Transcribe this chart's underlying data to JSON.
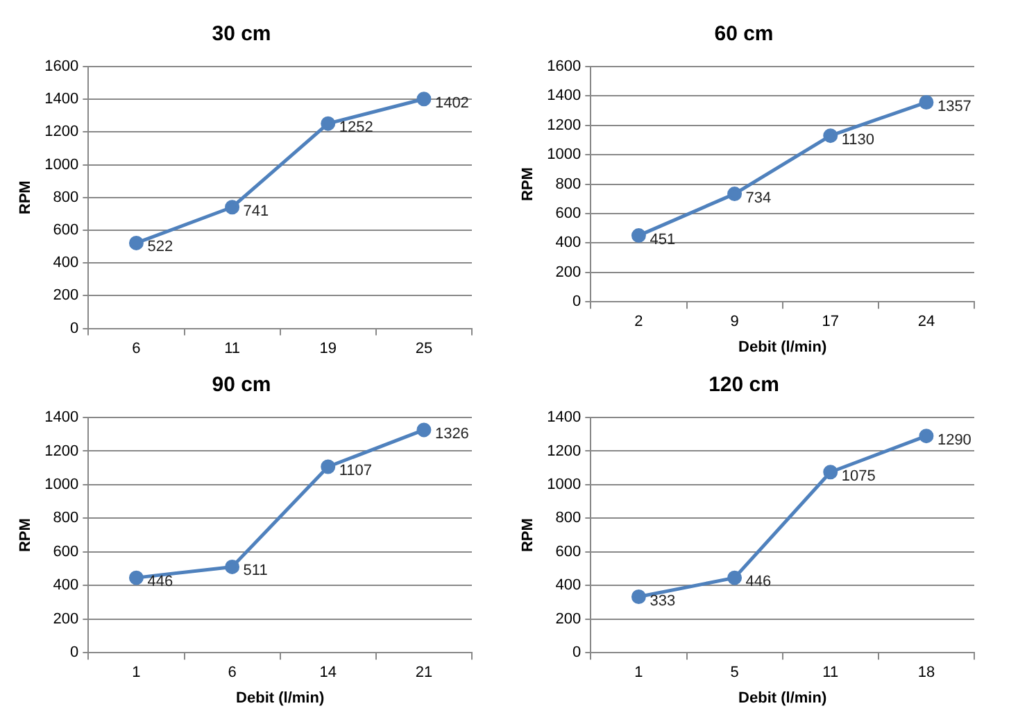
{
  "chart_data": [
    {
      "type": "line",
      "title": "30 cm",
      "ylabel": "RPM",
      "categories": [
        "6",
        "11",
        "19",
        "25"
      ],
      "values": [
        522,
        741,
        1252,
        1402
      ],
      "color": "#4f81bd",
      "ylim": [
        0,
        1600
      ],
      "yticks": [
        0,
        200,
        400,
        600,
        800,
        1000,
        1200,
        1400,
        1600
      ],
      "grid": "y",
      "data_labels": true,
      "marker": "circle"
    },
    {
      "type": "line",
      "title": "60 cm",
      "xlabel": "Debit (l/min)",
      "ylabel": "RPM",
      "categories": [
        "2",
        "9",
        "17",
        "24"
      ],
      "values": [
        451,
        734,
        1130,
        1357
      ],
      "color": "#4f81bd",
      "ylim": [
        0,
        1600
      ],
      "yticks": [
        0,
        200,
        400,
        600,
        800,
        1000,
        1200,
        1400,
        1600
      ],
      "grid": "y",
      "data_labels": true,
      "marker": "circle"
    },
    {
      "type": "line",
      "title": "90 cm",
      "xlabel": "Debit (l/min)",
      "ylabel": "RPM",
      "categories": [
        "1",
        "6",
        "14",
        "21"
      ],
      "values": [
        446,
        511,
        1107,
        1326
      ],
      "color": "#4f81bd",
      "ylim": [
        0,
        1400
      ],
      "yticks": [
        0,
        200,
        400,
        600,
        800,
        1000,
        1200,
        1400
      ],
      "grid": "y",
      "data_labels": true,
      "marker": "circle"
    },
    {
      "type": "line",
      "title": "120 cm",
      "xlabel": "Debit (l/min)",
      "ylabel": "RPM",
      "categories": [
        "1",
        "5",
        "11",
        "18"
      ],
      "values": [
        333,
        446,
        1075,
        1290
      ],
      "color": "#4f81bd",
      "ylim": [
        0,
        1400
      ],
      "yticks": [
        0,
        200,
        400,
        600,
        800,
        1000,
        1200,
        1400
      ],
      "grid": "y",
      "data_labels": true,
      "marker": "circle"
    }
  ]
}
